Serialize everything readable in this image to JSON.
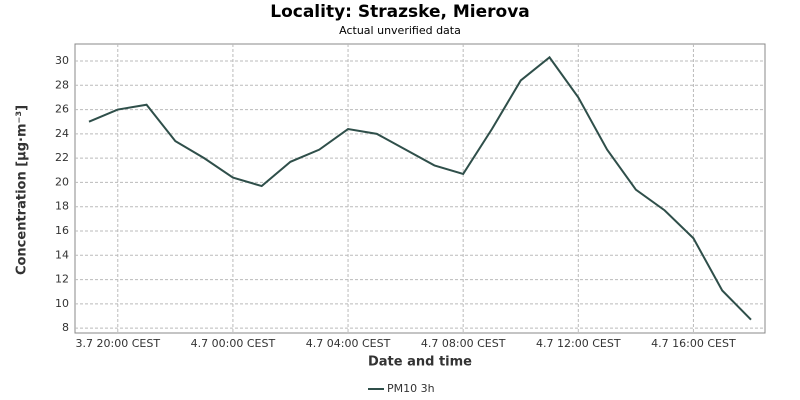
{
  "chart_data": {
    "type": "line",
    "title": "Locality: Strazske, Mierova",
    "subtitle": "Actual unverified data",
    "x_label": "Date and time",
    "y_label": "Concentration [µg·m⁻³]",
    "categories": [
      null,
      "3.7 20:00 CEST",
      null,
      null,
      null,
      "4.7 00:00 CEST",
      null,
      null,
      null,
      "4.7 04:00 CEST",
      null,
      null,
      null,
      "4.7 08:00 CEST",
      null,
      null,
      null,
      "4.7 12:00 CEST",
      null,
      null,
      null,
      "4.7 16:00 CEST",
      null,
      null
    ],
    "series": [
      {
        "name": "PM10 3h",
        "color": "#2f4f4a",
        "values": [
          25.0,
          26.0,
          26.4,
          23.4,
          22.0,
          20.4,
          19.7,
          21.7,
          22.7,
          24.4,
          24.0,
          22.7,
          21.4,
          20.7,
          24.4,
          28.4,
          30.3,
          27.0,
          22.7,
          19.4,
          17.7,
          15.4,
          11.1,
          8.7
        ]
      }
    ],
    "ylim": [
      7.6,
      31.4
    ],
    "yticks": [
      8,
      10,
      12,
      14,
      16,
      18,
      20,
      22,
      24,
      26,
      28,
      30
    ],
    "grid": true,
    "legend": "bottom"
  }
}
